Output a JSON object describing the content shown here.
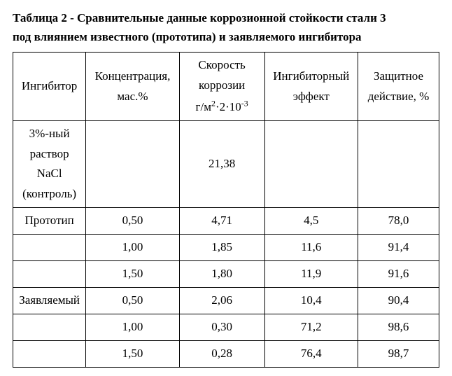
{
  "title_line1": "Таблица 2 - Сравнительные данные коррозионной стойкости стали 3",
  "title_line2": " под влиянием известного (прототипа) и заявляемого ингибитора",
  "headers": {
    "c1": "Ингибитор",
    "c2": "Концентрация, мас.%",
    "c3_l1": "Скорость",
    "c3_l2": "коррозии",
    "c3_l3_html": "г/м<sup>2</sup>·2·10<sup>-3</sup>",
    "c4": "Ингибиторный эффект",
    "c5": "Защитное действие, %"
  },
  "rows": [
    {
      "c1_l1": "3%-ный",
      "c1_l2": "раствор",
      "c1_l3": "NaCl",
      "c1_l4": "(контроль)",
      "c2": "",
      "c3": "21,38",
      "c4": "",
      "c5": ""
    },
    {
      "c1": "Прототип",
      "c2": "0,50",
      "c3": "4,71",
      "c4": "4,5",
      "c5": "78,0"
    },
    {
      "c1": "",
      "c2": "1,00",
      "c3": "1,85",
      "c4": "11,6",
      "c5": "91,4"
    },
    {
      "c1": "",
      "c2": "1,50",
      "c3": "1,80",
      "c4": "11,9",
      "c5": "91,6"
    },
    {
      "c1": "Заявляемый",
      "c2": "0,50",
      "c3": "2,06",
      "c4": "10,4",
      "c5": "90,4"
    },
    {
      "c1": "",
      "c2": "1,00",
      "c3": "0,30",
      "c4": "71,2",
      "c5": "98,6"
    },
    {
      "c1": "",
      "c2": "1,50",
      "c3": "0,28",
      "c4": "76,4",
      "c5": "98,7"
    }
  ]
}
